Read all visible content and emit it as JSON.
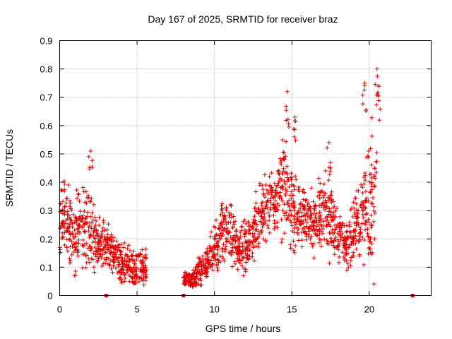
{
  "chart_data": {
    "type": "scatter",
    "title": "Day 167 of 2025, SRMTID for receiver braz",
    "xlabel": "GPS time / hours",
    "ylabel": "SRMTID / TECUs",
    "xlim": [
      0,
      24
    ],
    "ylim": [
      0,
      0.9
    ],
    "xticks": [
      "0",
      "5",
      "10",
      "15",
      "20"
    ],
    "xtick_values": [
      0,
      5,
      10,
      15,
      20
    ],
    "yticks": [
      "0",
      "0.1",
      "0.2",
      "0.3",
      "0.4",
      "0.5",
      "0.6",
      "0.7",
      "0.8",
      "0.9"
    ],
    "ytick_values": [
      0,
      0.1,
      0.2,
      0.3,
      0.4,
      0.5,
      0.6,
      0.7,
      0.8,
      0.9
    ],
    "grid": true,
    "marker": "plus",
    "color": "#e00000",
    "series": [
      {
        "name": "SRMTID",
        "trend": [
          {
            "x": 0.0,
            "y": 0.28,
            "spread": 0.1
          },
          {
            "x": 0.5,
            "y": 0.25,
            "spread": 0.1
          },
          {
            "x": 1.0,
            "y": 0.22,
            "spread": 0.1
          },
          {
            "x": 1.5,
            "y": 0.26,
            "spread": 0.12
          },
          {
            "x": 2.0,
            "y": 0.25,
            "spread": 0.12
          },
          {
            "x": 2.5,
            "y": 0.18,
            "spread": 0.06
          },
          {
            "x": 3.0,
            "y": 0.18,
            "spread": 0.06
          },
          {
            "x": 3.5,
            "y": 0.15,
            "spread": 0.05
          },
          {
            "x": 4.0,
            "y": 0.11,
            "spread": 0.05
          },
          {
            "x": 4.5,
            "y": 0.11,
            "spread": 0.05
          },
          {
            "x": 5.0,
            "y": 0.1,
            "spread": 0.05
          },
          {
            "x": 5.6,
            "y": 0.1,
            "spread": 0.05
          },
          {
            "x": 8.0,
            "y": 0.06,
            "spread": 0.02
          },
          {
            "x": 8.5,
            "y": 0.05,
            "spread": 0.02
          },
          {
            "x": 9.0,
            "y": 0.09,
            "spread": 0.04
          },
          {
            "x": 9.5,
            "y": 0.12,
            "spread": 0.05
          },
          {
            "x": 10.0,
            "y": 0.16,
            "spread": 0.06
          },
          {
            "x": 10.5,
            "y": 0.22,
            "spread": 0.08
          },
          {
            "x": 11.0,
            "y": 0.23,
            "spread": 0.08
          },
          {
            "x": 11.5,
            "y": 0.18,
            "spread": 0.07
          },
          {
            "x": 12.0,
            "y": 0.17,
            "spread": 0.07
          },
          {
            "x": 12.5,
            "y": 0.22,
            "spread": 0.08
          },
          {
            "x": 13.0,
            "y": 0.28,
            "spread": 0.09
          },
          {
            "x": 13.5,
            "y": 0.33,
            "spread": 0.09
          },
          {
            "x": 14.0,
            "y": 0.32,
            "spread": 0.09
          },
          {
            "x": 14.5,
            "y": 0.4,
            "spread": 0.16
          },
          {
            "x": 15.0,
            "y": 0.3,
            "spread": 0.09
          },
          {
            "x": 15.5,
            "y": 0.27,
            "spread": 0.08
          },
          {
            "x": 16.0,
            "y": 0.28,
            "spread": 0.08
          },
          {
            "x": 16.5,
            "y": 0.25,
            "spread": 0.08
          },
          {
            "x": 17.0,
            "y": 0.3,
            "spread": 0.1
          },
          {
            "x": 17.5,
            "y": 0.28,
            "spread": 0.1
          },
          {
            "x": 18.0,
            "y": 0.22,
            "spread": 0.07
          },
          {
            "x": 18.5,
            "y": 0.17,
            "spread": 0.06
          },
          {
            "x": 19.0,
            "y": 0.22,
            "spread": 0.07
          },
          {
            "x": 19.5,
            "y": 0.28,
            "spread": 0.12
          },
          {
            "x": 20.0,
            "y": 0.35,
            "spread": 0.18
          },
          {
            "x": 20.5,
            "y": 0.38,
            "spread": 0.2
          }
        ],
        "gap_markers": [
          3.0,
          8.0,
          22.8
        ],
        "peaks": [
          {
            "x": 14.7,
            "y": 0.72
          },
          {
            "x": 15.2,
            "y": 0.63
          },
          {
            "x": 19.7,
            "y": 0.75
          },
          {
            "x": 20.5,
            "y": 0.8
          },
          {
            "x": 20.6,
            "y": 0.74
          },
          {
            "x": 2.0,
            "y": 0.51
          },
          {
            "x": 17.4,
            "y": 0.54
          }
        ]
      }
    ]
  }
}
